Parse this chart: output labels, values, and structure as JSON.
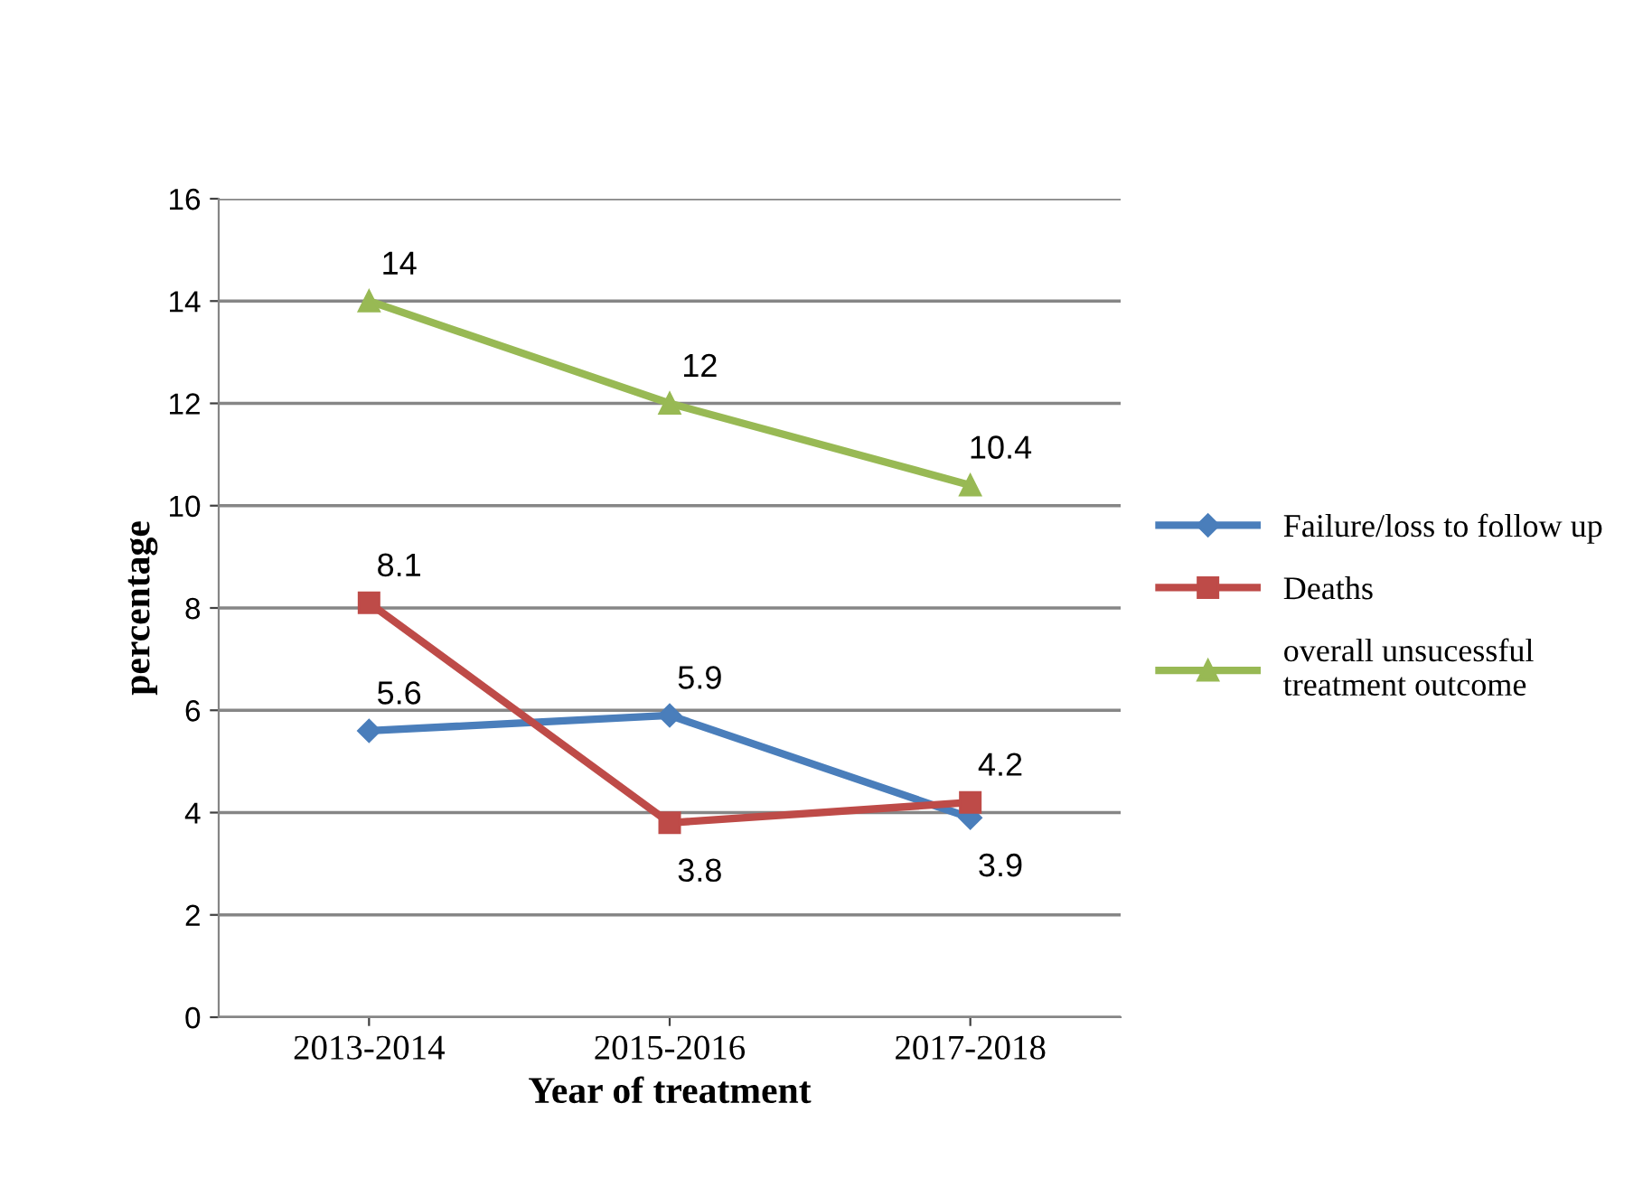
{
  "chart_data": {
    "type": "line",
    "xlabel": "Year of treatment",
    "ylabel": "percentage",
    "categories": [
      "2013-2014",
      "2015-2016",
      "2017-2018"
    ],
    "series": [
      {
        "name": "Failure/loss to follow up",
        "color": "#4a7ebb",
        "values": [
          5.6,
          5.9,
          3.9
        ],
        "marker": "diamond"
      },
      {
        "name": "Deaths",
        "color": "#be4b48",
        "values": [
          8.1,
          3.8,
          4.2
        ],
        "marker": "square"
      },
      {
        "name": "overall unsucessful treatment outcome",
        "color": "#98b954",
        "values": [
          14,
          12,
          10.4
        ],
        "marker": "triangle"
      }
    ],
    "ylim": [
      0,
      16
    ],
    "yticks": [
      0,
      2,
      4,
      6,
      8,
      10,
      12,
      14,
      16
    ],
    "grid": "y",
    "legend": "right",
    "data_labels": true,
    "line_style": "solid"
  }
}
